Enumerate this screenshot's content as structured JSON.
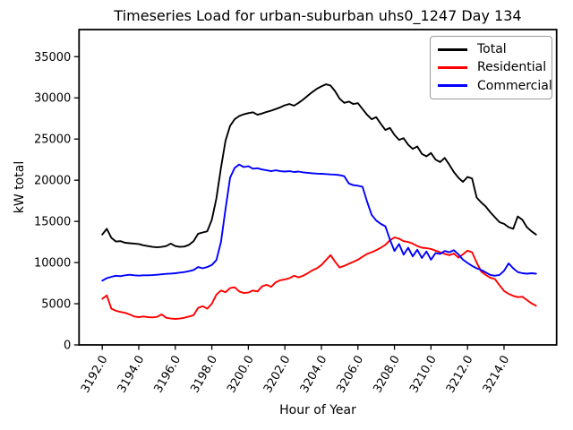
{
  "title": "Timeseries Load for urban-suburban uhs0_1247  Day 134",
  "chart_data": {
    "type": "line",
    "title": "Timeseries Load for urban-suburban uhs0_1247  Day 134",
    "xlabel": "Hour of Year",
    "ylabel": "kW total",
    "xlim": [
      3190.73,
      3216.88
    ],
    "ylim": [
      0,
      38295
    ],
    "grid": false,
    "legend_position": "upper right",
    "xticks": [
      3192,
      3194,
      3196,
      3198,
      3200,
      3202,
      3204,
      3206,
      3208,
      3210,
      3212,
      3214
    ],
    "xtick_labels": [
      "3192.0",
      "3194.0",
      "3196.0",
      "3198.0",
      "3200.0",
      "3202.0",
      "3204.0",
      "3206.0",
      "3208.0",
      "3210.0",
      "3212.0",
      "3214.0"
    ],
    "yticks": [
      0,
      5000,
      10000,
      15000,
      20000,
      25000,
      30000,
      35000
    ],
    "x_start": 3192.0,
    "x_step": 0.25,
    "x_end": 3215.75,
    "series": [
      {
        "name": "Total",
        "color": "#000000",
        "values": [
          13400,
          14100,
          13000,
          12550,
          12600,
          12400,
          12350,
          12300,
          12250,
          12100,
          12000,
          11900,
          11850,
          11900,
          12000,
          12300,
          12000,
          11900,
          11950,
          12150,
          12600,
          13500,
          13650,
          13800,
          15200,
          17800,
          21500,
          24800,
          26600,
          27400,
          27800,
          28000,
          28150,
          28250,
          27950,
          28100,
          28300,
          28450,
          28650,
          28850,
          29100,
          29250,
          29050,
          29400,
          29800,
          30250,
          30700,
          31100,
          31400,
          31650,
          31500,
          30800,
          29900,
          29400,
          29550,
          29250,
          29350,
          28650,
          27950,
          27400,
          27650,
          26850,
          26100,
          26350,
          25500,
          24900,
          25100,
          24300,
          23800,
          24100,
          23200,
          22900,
          23300,
          22500,
          22200,
          22700,
          21900,
          21000,
          20300,
          19800,
          20400,
          20200,
          17900,
          17300,
          16800,
          16100,
          15500,
          14900,
          14700,
          14300,
          14100,
          15600,
          15200,
          14300,
          13800,
          13400
        ]
      },
      {
        "name": "Residential",
        "color": "#ff0000",
        "values": [
          5600,
          6000,
          4400,
          4150,
          4000,
          3900,
          3700,
          3450,
          3370,
          3450,
          3370,
          3340,
          3400,
          3700,
          3300,
          3200,
          3150,
          3200,
          3300,
          3450,
          3600,
          4500,
          4700,
          4400,
          5000,
          6100,
          6600,
          6400,
          6900,
          7000,
          6500,
          6300,
          6350,
          6600,
          6500,
          7100,
          7300,
          7050,
          7600,
          7850,
          7950,
          8100,
          8400,
          8200,
          8400,
          8700,
          9050,
          9300,
          9700,
          10300,
          10900,
          10100,
          9400,
          9600,
          9850,
          10100,
          10350,
          10700,
          11050,
          11250,
          11500,
          11800,
          12150,
          12700,
          13060,
          12900,
          12600,
          12500,
          12300,
          12000,
          11800,
          11750,
          11650,
          11450,
          11250,
          11050,
          10900,
          11100,
          10600,
          11000,
          11450,
          11250,
          10000,
          8900,
          8500,
          8150,
          8000,
          7250,
          6550,
          6200,
          5950,
          5800,
          5850,
          5450,
          5050,
          4750
        ]
      },
      {
        "name": "Commercial",
        "color": "#0000ff",
        "values": [
          7800,
          8100,
          8270,
          8400,
          8340,
          8450,
          8520,
          8450,
          8410,
          8450,
          8450,
          8480,
          8520,
          8570,
          8630,
          8660,
          8700,
          8780,
          8850,
          8950,
          9100,
          9450,
          9300,
          9450,
          9700,
          10300,
          12500,
          16500,
          20300,
          21500,
          21900,
          21600,
          21700,
          21400,
          21450,
          21300,
          21200,
          21100,
          21200,
          21100,
          21050,
          21100,
          21000,
          21050,
          20950,
          20900,
          20850,
          20800,
          20780,
          20750,
          20700,
          20680,
          20620,
          20490,
          19600,
          19400,
          19330,
          19200,
          17400,
          15800,
          15100,
          14700,
          14400,
          12800,
          11400,
          12250,
          10950,
          11800,
          10750,
          11550,
          10550,
          11350,
          10350,
          11150,
          11050,
          11400,
          11250,
          11500,
          11000,
          10350,
          9950,
          9600,
          9300,
          9100,
          8800,
          8500,
          8400,
          8500,
          9000,
          9900,
          9300,
          8850,
          8700,
          8650,
          8700,
          8650
        ]
      }
    ]
  },
  "legend": {
    "items": [
      {
        "label": "Total"
      },
      {
        "label": "Residential"
      },
      {
        "label": "Commercial"
      }
    ]
  }
}
